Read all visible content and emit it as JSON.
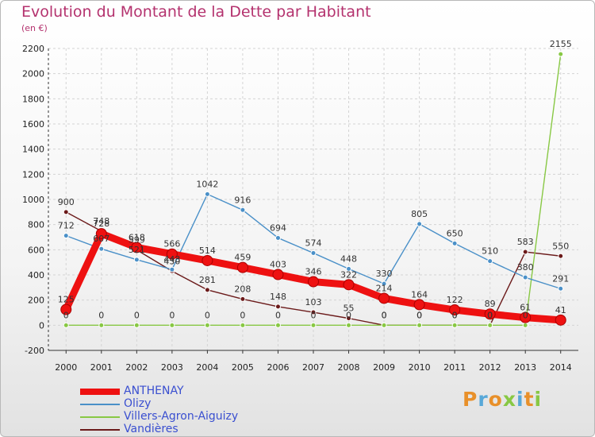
{
  "header": {
    "title": "Evolution du Montant de la Dette par Habitant",
    "subtitle": "(en €)"
  },
  "logo": {
    "text": "Proxiti",
    "colors": [
      "#e8902a",
      "#58a8d8",
      "#e8902a",
      "#88c844",
      "#58a8d8",
      "#e8902a",
      "#88c844"
    ]
  },
  "chart_data": {
    "type": "line",
    "x": [
      "2000",
      "2001",
      "2002",
      "2003",
      "2004",
      "2005",
      "2006",
      "2007",
      "2008",
      "2009",
      "2010",
      "2011",
      "2012",
      "2013",
      "2014"
    ],
    "ylim": [
      -200,
      2200
    ],
    "yticks": [
      -200,
      0,
      200,
      400,
      600,
      800,
      1000,
      1200,
      1400,
      1600,
      1800,
      2000,
      2200
    ],
    "grid": true,
    "legend_position": "bottom-left",
    "series": [
      {
        "name": "Vandières",
        "color": "#6b1a1a",
        "emphasis": false,
        "values": [
          900,
          748,
          599,
          430,
          281,
          208,
          148,
          103,
          55,
          0,
          0,
          0,
          0,
          583,
          550
        ]
      },
      {
        "name": "Villers-Agron-Aiguizy",
        "color": "#88c844",
        "emphasis": false,
        "values": [
          0,
          0,
          0,
          0,
          0,
          0,
          0,
          0,
          0,
          0,
          0,
          0,
          0,
          0,
          2155
        ]
      },
      {
        "name": "Olizy",
        "color": "#4a90c8",
        "emphasis": false,
        "values": [
          712,
          607,
          521,
          443,
          1042,
          916,
          694,
          574,
          448,
          330,
          805,
          650,
          510,
          380,
          291
        ]
      },
      {
        "name": "ANTHENAY",
        "color": "#ee1111",
        "emphasis": true,
        "values": [
          125,
          728,
          618,
          566,
          514,
          459,
          403,
          346,
          322,
          214,
          164,
          122,
          89,
          61,
          41
        ]
      }
    ]
  }
}
